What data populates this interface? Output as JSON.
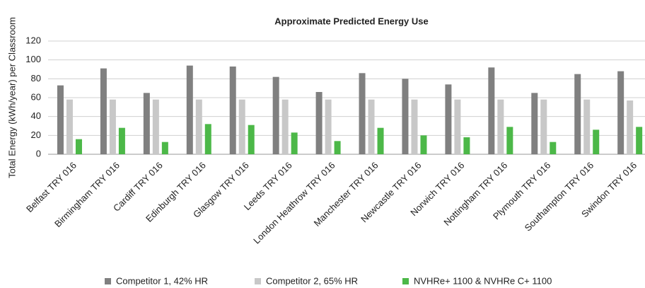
{
  "chart_data": {
    "type": "bar",
    "title": "Approximate Predicted Energy Use",
    "y_label": "Total Energy (kWh/year) per Classroom",
    "categories": [
      "Belfast TRY 016",
      "Birmingham TRY 016",
      "Cardiff TRY 016",
      "Edinburgh TRY 016",
      "Glasgow TRY 016",
      "Leeds TRY 016",
      "London Heathrow TRY 016",
      "Manchester TRY 016",
      "Newcastle TRY 016",
      "Norwich TRY 016",
      "Nottingham TRY 016",
      "Plymouth TRY 016",
      "Southampton TRY 016",
      "Swindon TRY 016"
    ],
    "series": [
      {
        "name": "Competitor 1, 42% HR",
        "color": "#808080",
        "values": [
          73,
          91,
          65,
          94,
          93,
          82,
          66,
          86,
          80,
          74,
          92,
          65,
          85,
          88
        ]
      },
      {
        "name": "Competitor 2, 65% HR",
        "color": "#c8c8c8",
        "values": [
          58,
          58,
          58,
          58,
          58,
          58,
          58,
          58,
          58,
          58,
          58,
          58,
          58,
          57
        ]
      },
      {
        "name": "NVHRe+ 1100 & NVHRe C+ 1100",
        "color": "#4cb848",
        "values": [
          16,
          28,
          13,
          32,
          31,
          23,
          14,
          28,
          20,
          18,
          29,
          13,
          26,
          29
        ]
      }
    ],
    "ylim": [
      0,
      120
    ],
    "yticks": [
      0,
      20,
      40,
      60,
      80,
      100,
      120
    ],
    "grid": true,
    "legend": "bottom"
  }
}
